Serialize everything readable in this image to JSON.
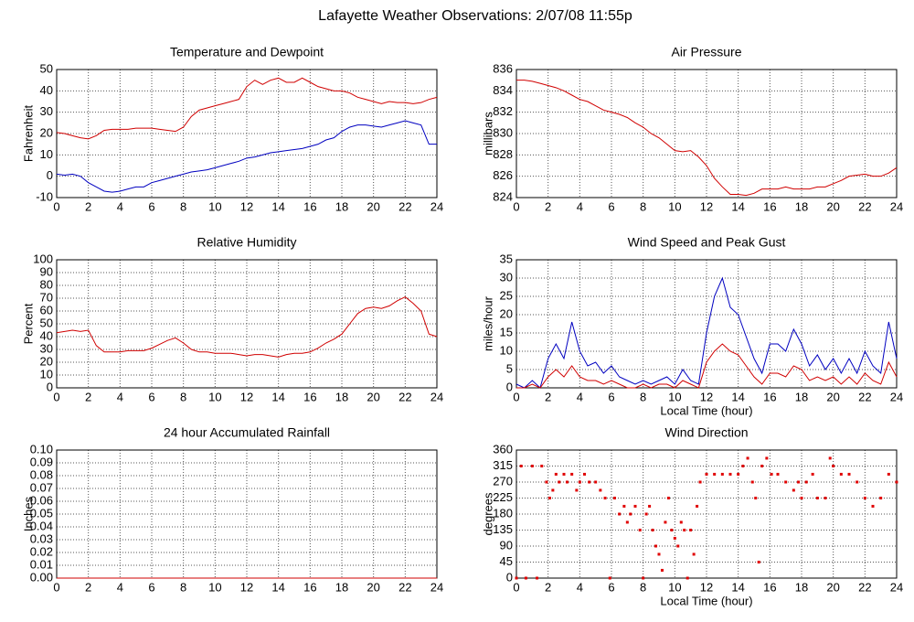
{
  "title": "Lafayette Weather Observations: 2/07/08 11:55p",
  "chart_data": [
    {
      "type": "line",
      "title": "Temperature and Dewpoint",
      "ylabel": "Fahrenheit",
      "x": [
        0,
        0.5,
        1,
        1.5,
        2,
        2.5,
        3,
        3.5,
        4,
        4.5,
        5,
        5.5,
        6,
        6.5,
        7,
        7.5,
        8,
        8.5,
        9,
        9.5,
        10,
        10.5,
        11,
        11.5,
        12,
        12.5,
        13,
        13.5,
        14,
        14.5,
        15,
        15.5,
        16,
        16.5,
        17,
        17.5,
        18,
        18.5,
        19,
        19.5,
        20,
        20.5,
        21,
        21.5,
        22,
        22.5,
        23,
        23.5,
        24
      ],
      "series": [
        {
          "color": "#d00000",
          "values": [
            20.5,
            20,
            19,
            18,
            17.5,
            19,
            21.5,
            22,
            22,
            22,
            22.5,
            22.5,
            22.5,
            22,
            21.5,
            21,
            23,
            28,
            31,
            32,
            33,
            34,
            35,
            36,
            42,
            45,
            43,
            45,
            46,
            44,
            44,
            46,
            44,
            42,
            41,
            40,
            40,
            39,
            37,
            36,
            35,
            34,
            35,
            34.5,
            34.5,
            34,
            34.5,
            36,
            37
          ]
        },
        {
          "color": "#0000c0",
          "values": [
            1,
            0.5,
            1,
            0,
            -3,
            -5,
            -7,
            -7.5,
            -7,
            -6,
            -5,
            -5,
            -3,
            -2,
            -1,
            0,
            1,
            2,
            2.5,
            3,
            4,
            5,
            6,
            7,
            8.5,
            9,
            10,
            11,
            11.5,
            12,
            12.5,
            13,
            14,
            15,
            17,
            18,
            21,
            23,
            24,
            24,
            23.5,
            23,
            24,
            25,
            26,
            25,
            24,
            15,
            15
          ]
        }
      ],
      "xlim": [
        0,
        24
      ],
      "xticks": [
        0,
        2,
        4,
        6,
        8,
        10,
        12,
        14,
        16,
        18,
        20,
        22,
        24
      ],
      "ylim": [
        -10,
        50
      ],
      "yticks": [
        -10,
        0,
        10,
        20,
        30,
        40,
        50
      ],
      "grid": true
    },
    {
      "type": "line",
      "title": "Air Pressure",
      "ylabel": "millibars",
      "x": [
        0,
        0.5,
        1,
        1.5,
        2,
        2.5,
        3,
        3.5,
        4,
        4.5,
        5,
        5.5,
        6,
        6.5,
        7,
        7.5,
        8,
        8.5,
        9,
        9.5,
        10,
        10.5,
        11,
        11.5,
        12,
        12.5,
        13,
        13.5,
        14,
        14.5,
        15,
        15.5,
        16,
        16.5,
        17,
        17.5,
        18,
        18.5,
        19,
        19.5,
        20,
        20.5,
        21,
        21.5,
        22,
        22.5,
        23,
        23.5,
        24
      ],
      "series": [
        {
          "color": "#d00000",
          "values": [
            835,
            835,
            834.9,
            834.7,
            834.5,
            834.3,
            834,
            833.6,
            833.2,
            833,
            832.6,
            832.2,
            832,
            831.8,
            831.5,
            831,
            830.6,
            830,
            829.6,
            829,
            828.4,
            828.3,
            828.4,
            827.8,
            827,
            825.8,
            825,
            824.3,
            824.3,
            824.2,
            824.4,
            824.8,
            824.8,
            824.8,
            825,
            824.8,
            824.8,
            824.8,
            825,
            825,
            825.3,
            825.6,
            826,
            826.1,
            826.2,
            826,
            826,
            826.3,
            826.8
          ]
        }
      ],
      "xlim": [
        0,
        24
      ],
      "xticks": [
        0,
        2,
        4,
        6,
        8,
        10,
        12,
        14,
        16,
        18,
        20,
        22,
        24
      ],
      "ylim": [
        824,
        836
      ],
      "yticks": [
        824,
        826,
        828,
        830,
        832,
        834,
        836
      ],
      "grid": true
    },
    {
      "type": "line",
      "title": "Relative Humidity",
      "ylabel": "Percent",
      "x": [
        0,
        0.5,
        1,
        1.5,
        2,
        2.5,
        3,
        3.5,
        4,
        4.5,
        5,
        5.5,
        6,
        6.5,
        7,
        7.5,
        8,
        8.5,
        9,
        9.5,
        10,
        10.5,
        11,
        11.5,
        12,
        12.5,
        13,
        13.5,
        14,
        14.5,
        15,
        15.5,
        16,
        16.5,
        17,
        17.5,
        18,
        18.5,
        19,
        19.5,
        20,
        20.5,
        21,
        21.5,
        22,
        22.5,
        23,
        23.5,
        24
      ],
      "series": [
        {
          "color": "#d00000",
          "values": [
            43,
            44,
            45,
            44,
            45,
            33,
            28,
            28,
            28,
            29,
            29,
            29,
            31,
            34,
            37,
            39,
            35,
            30,
            28,
            28,
            27,
            27,
            27,
            26,
            25,
            26,
            26,
            25,
            24,
            26,
            27,
            27,
            28,
            31,
            35,
            38,
            42,
            50,
            58,
            62,
            63,
            62,
            64,
            68,
            71,
            66,
            60,
            42,
            40
          ]
        }
      ],
      "xlim": [
        0,
        24
      ],
      "xticks": [
        0,
        2,
        4,
        6,
        8,
        10,
        12,
        14,
        16,
        18,
        20,
        22,
        24
      ],
      "ylim": [
        0,
        100
      ],
      "yticks": [
        0,
        10,
        20,
        30,
        40,
        50,
        60,
        70,
        80,
        90,
        100
      ],
      "grid": true
    },
    {
      "type": "line",
      "title": "Wind Speed and Peak Gust",
      "ylabel": "miles/hour",
      "xlabel": "Local Time (hour)",
      "x": [
        0,
        0.5,
        1,
        1.5,
        2,
        2.5,
        3,
        3.5,
        4,
        4.5,
        5,
        5.5,
        6,
        6.5,
        7,
        7.5,
        8,
        8.5,
        9,
        9.5,
        10,
        10.5,
        11,
        11.5,
        12,
        12.5,
        13,
        13.5,
        14,
        14.5,
        15,
        15.5,
        16,
        16.5,
        17,
        17.5,
        18,
        18.5,
        19,
        19.5,
        20,
        20.5,
        21,
        21.5,
        22,
        22.5,
        23,
        23.5,
        24
      ],
      "series": [
        {
          "color": "#0000c0",
          "values": [
            1,
            0,
            2,
            0,
            8,
            12,
            8,
            18,
            10,
            6,
            7,
            4,
            6,
            3,
            2,
            1,
            2,
            1,
            2,
            3,
            1,
            5,
            2,
            1,
            15,
            25,
            30,
            22,
            20,
            14,
            8,
            4,
            12,
            12,
            10,
            16,
            12,
            6,
            9,
            5,
            8,
            4,
            8,
            4,
            10,
            6,
            4,
            18,
            8
          ]
        },
        {
          "color": "#d00000",
          "values": [
            0,
            0,
            1,
            0,
            3,
            5,
            3,
            6,
            3,
            2,
            2,
            1,
            2,
            1,
            0,
            0,
            1,
            0,
            1,
            1,
            0,
            2,
            1,
            0,
            7,
            10,
            12,
            10,
            9,
            6,
            3,
            1,
            4,
            4,
            3,
            6,
            5,
            2,
            3,
            2,
            3,
            1,
            3,
            1,
            4,
            2,
            1,
            7,
            3
          ]
        }
      ],
      "xlim": [
        0,
        24
      ],
      "xticks": [
        0,
        2,
        4,
        6,
        8,
        10,
        12,
        14,
        16,
        18,
        20,
        22,
        24
      ],
      "ylim": [
        0,
        35
      ],
      "yticks": [
        0,
        5,
        10,
        15,
        20,
        25,
        30,
        35
      ],
      "grid": true
    },
    {
      "type": "line",
      "title": "24 hour Accumulated Rainfall",
      "ylabel": "Inches",
      "x": [
        0,
        24
      ],
      "series": [
        {
          "color": "#d00000",
          "values": [
            0,
            0
          ]
        }
      ],
      "xlim": [
        0,
        24
      ],
      "xticks": [
        0,
        2,
        4,
        6,
        8,
        10,
        12,
        14,
        16,
        18,
        20,
        22,
        24
      ],
      "ylim": [
        0,
        0.1
      ],
      "yticks": [
        {
          "value": 0,
          "label": "0.00"
        },
        {
          "value": 0.01,
          "label": "0.01"
        },
        {
          "value": 0.02,
          "label": "0.02"
        },
        {
          "value": 0.03,
          "label": "0.03"
        },
        {
          "value": 0.04,
          "label": "0.04"
        },
        {
          "value": 0.05,
          "label": "0.05"
        },
        {
          "value": 0.06,
          "label": "0.06"
        },
        {
          "value": 0.07,
          "label": "0.07"
        },
        {
          "value": 0.08,
          "label": "0.08"
        },
        {
          "value": 0.09,
          "label": "0.09"
        },
        {
          "value": 0.1,
          "label": "0.10"
        }
      ],
      "grid": true
    },
    {
      "type": "scatter",
      "title": "Wind Direction",
      "ylabel": "degrees",
      "xlabel": "Local Time (hour)",
      "color": "#e00000",
      "x": [
        0,
        0.3,
        0.6,
        1,
        1.3,
        1.6,
        1.9,
        2.1,
        2.3,
        2.5,
        2.7,
        3,
        3.2,
        3.5,
        3.8,
        4,
        4.3,
        4.6,
        5,
        5.3,
        5.6,
        5.9,
        6.2,
        6.5,
        6.8,
        7,
        7.2,
        7.5,
        7.8,
        8,
        8.2,
        8.4,
        8.6,
        8.8,
        9,
        9.2,
        9.4,
        9.6,
        9.8,
        10,
        10.2,
        10.4,
        10.6,
        10.8,
        11,
        11.2,
        11.4,
        11.6,
        12,
        12.5,
        13,
        13.5,
        14,
        14.3,
        14.6,
        14.9,
        15.1,
        15.3,
        15.5,
        15.8,
        16.1,
        16.5,
        17,
        17.5,
        17.8,
        18,
        18.3,
        18.7,
        19,
        19.5,
        19.8,
        20,
        20.5,
        21,
        21.5,
        22,
        22.5,
        23,
        23.5,
        24
      ],
      "values": [
        0,
        315,
        0,
        315,
        0,
        315,
        270,
        225,
        247,
        292,
        270,
        292,
        270,
        292,
        247,
        270,
        292,
        270,
        270,
        247,
        225,
        0,
        225,
        180,
        202,
        157,
        180,
        202,
        135,
        0,
        180,
        202,
        135,
        90,
        67,
        22,
        157,
        225,
        135,
        112,
        90,
        157,
        135,
        0,
        135,
        67,
        202,
        270,
        292,
        292,
        292,
        292,
        292,
        315,
        337,
        270,
        225,
        45,
        315,
        337,
        292,
        292,
        270,
        247,
        270,
        225,
        270,
        292,
        225,
        225,
        337,
        315,
        292,
        292,
        270,
        225,
        202,
        225,
        292,
        270
      ],
      "xlim": [
        0,
        24
      ],
      "xticks": [
        0,
        2,
        4,
        6,
        8,
        10,
        12,
        14,
        16,
        18,
        20,
        22,
        24
      ],
      "ylim": [
        0,
        360
      ],
      "yticks": [
        0,
        45,
        90,
        135,
        180,
        225,
        270,
        315,
        360
      ],
      "grid": true
    }
  ]
}
